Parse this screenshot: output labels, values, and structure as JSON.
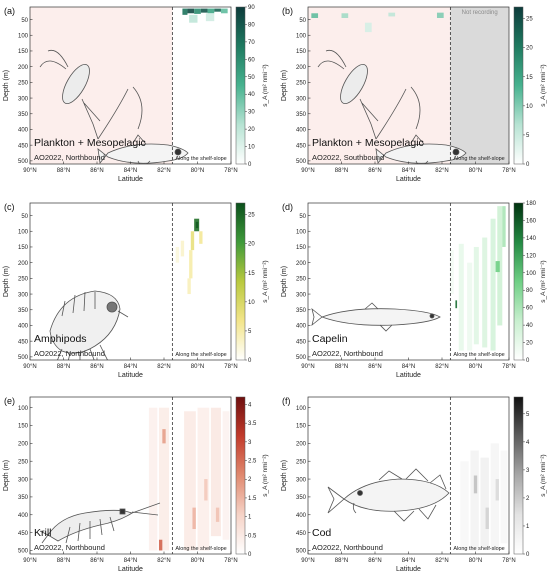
{
  "chart_data": [
    {
      "type": "heatmap",
      "panel_label": "(a)",
      "title": "Plankton + Mesopelagic",
      "subtitle": "AO2022, Northbound",
      "xlabel": "Latitude",
      "ylabel": "Depth (m)",
      "x_ticks": [
        "90°N",
        "88°N",
        "86°N",
        "84°N",
        "82°N",
        "80°N",
        "78°N"
      ],
      "x_tick_values": [
        90,
        88,
        86,
        84,
        82,
        80,
        78
      ],
      "xlim": [
        90,
        78
      ],
      "y_ticks": [
        "50",
        "100",
        "150",
        "200",
        "250",
        "300",
        "350",
        "400",
        "450",
        "500"
      ],
      "ylim": [
        10,
        510
      ],
      "colorbar_label": "s_A (m² nmi⁻²)",
      "colorbar_ticks": [
        "0",
        "10",
        "20",
        "30",
        "40",
        "50",
        "60",
        "70",
        "80",
        "90"
      ],
      "colorbar_range": [
        0,
        90
      ],
      "colormap": [
        "#ffffff",
        "#b7e3d3",
        "#47b28f",
        "#1f7a60",
        "#0d3b3b"
      ],
      "shelf_slope_latitude": 81.5,
      "shelf_slope_label": "Along the shelf-slope",
      "background_region": {
        "lat": [
          90,
          81.5
        ],
        "depth": [
          10,
          510
        ],
        "color": "#fbe8e6",
        "opacity": 0.75
      },
      "cells": [
        {
          "lat": [
            80.9,
            80.6
          ],
          "depth": [
            15,
            35
          ],
          "value": 70
        },
        {
          "lat": [
            80.6,
            80.2
          ],
          "depth": [
            15,
            30
          ],
          "value": 85
        },
        {
          "lat": [
            80.2,
            79.8
          ],
          "depth": [
            15,
            32
          ],
          "value": 60
        },
        {
          "lat": [
            79.8,
            79.4
          ],
          "depth": [
            15,
            28
          ],
          "value": 80
        },
        {
          "lat": [
            79.4,
            79.0
          ],
          "depth": [
            15,
            30
          ],
          "value": 50
        },
        {
          "lat": [
            79.0,
            78.6
          ],
          "depth": [
            15,
            25
          ],
          "value": 75
        },
        {
          "lat": [
            78.6,
            78.2
          ],
          "depth": [
            15,
            30
          ],
          "value": 40
        },
        {
          "lat": [
            80.5,
            80.0
          ],
          "depth": [
            35,
            60
          ],
          "value": 20
        },
        {
          "lat": [
            79.5,
            79.0
          ],
          "depth": [
            30,
            55
          ],
          "value": 15
        }
      ],
      "not_recording": null,
      "animal": "copepod-myctophid"
    },
    {
      "type": "heatmap",
      "panel_label": "(b)",
      "title": "Plankton + Mesopelagic",
      "subtitle": "AO2022, Southbound",
      "xlabel": "Latitude",
      "ylabel": "Depth (m)",
      "x_ticks": [
        "90°N",
        "88°N",
        "86°N",
        "84°N",
        "82°N",
        "80°N",
        "78°N"
      ],
      "x_tick_values": [
        90,
        88,
        86,
        84,
        82,
        80,
        78
      ],
      "xlim": [
        90,
        78
      ],
      "y_ticks": [
        "50",
        "100",
        "150",
        "200",
        "250",
        "300",
        "350",
        "400",
        "450",
        "500"
      ],
      "ylim": [
        10,
        510
      ],
      "colorbar_label": "s_A (m² nmi⁻²)",
      "colorbar_ticks": [
        "0",
        "5",
        "10",
        "15",
        "20",
        "25"
      ],
      "colorbar_range": [
        0,
        27
      ],
      "colormap": [
        "#ffffff",
        "#b7e3d3",
        "#47b28f",
        "#1f7a60",
        "#0d3b3b"
      ],
      "shelf_slope_latitude": 81.5,
      "shelf_slope_label": "Along the shelf-slope",
      "background_region": {
        "lat": [
          90,
          81.5
        ],
        "depth": [
          10,
          510
        ],
        "color": "#fbe8e6",
        "opacity": 0.75
      },
      "cells": [
        {
          "lat": [
            89.8,
            89.4
          ],
          "depth": [
            30,
            45
          ],
          "value": 12
        },
        {
          "lat": [
            88.0,
            87.6
          ],
          "depth": [
            30,
            45
          ],
          "value": 8
        },
        {
          "lat": [
            85.2,
            84.8
          ],
          "depth": [
            28,
            40
          ],
          "value": 6
        },
        {
          "lat": [
            82.3,
            81.9
          ],
          "depth": [
            28,
            45
          ],
          "value": 10
        },
        {
          "lat": [
            86.6,
            86.2
          ],
          "depth": [
            60,
            90
          ],
          "value": 4
        }
      ],
      "not_recording": {
        "lat": [
          81.5,
          78
        ],
        "label": "Not recording"
      },
      "animal": "copepod-myctophid"
    },
    {
      "type": "heatmap",
      "panel_label": "(c)",
      "title": "Amphipods",
      "subtitle": "AO2022, Northbound",
      "xlabel": "Latitude",
      "ylabel": "Depth (m)",
      "x_ticks": [
        "90°N",
        "88°N",
        "86°N",
        "84°N",
        "82°N",
        "80°N",
        "78°N"
      ],
      "x_tick_values": [
        90,
        88,
        86,
        84,
        82,
        80,
        78
      ],
      "xlim": [
        90,
        78
      ],
      "y_ticks": [
        "50",
        "100",
        "150",
        "200",
        "250",
        "300",
        "350",
        "400",
        "450",
        "500"
      ],
      "ylim": [
        10,
        510
      ],
      "colorbar_label": "s_A (m² nmi⁻²)",
      "colorbar_ticks": [
        "0",
        "5",
        "10",
        "15",
        "20",
        "25"
      ],
      "colorbar_range": [
        0,
        27
      ],
      "colormap": [
        "#ffffff",
        "#f3e58a",
        "#b9c93e",
        "#3f9a3a",
        "#0b4f1c"
      ],
      "shelf_slope_latitude": 81.5,
      "shelf_slope_label": "Along the shelf-slope",
      "background_region": null,
      "cells": [
        {
          "lat": [
            80.2,
            79.9
          ],
          "depth": [
            60,
            100
          ],
          "value": 24
        },
        {
          "lat": [
            80.1,
            79.95
          ],
          "depth": [
            70,
            90
          ],
          "value": 26
        },
        {
          "lat": [
            80.4,
            80.2
          ],
          "depth": [
            100,
            160
          ],
          "value": 8
        },
        {
          "lat": [
            80.5,
            80.3
          ],
          "depth": [
            160,
            250
          ],
          "value": 5
        },
        {
          "lat": [
            80.6,
            80.4
          ],
          "depth": [
            250,
            300
          ],
          "value": 4
        },
        {
          "lat": [
            81.0,
            80.8
          ],
          "depth": [
            130,
            180
          ],
          "value": 3
        },
        {
          "lat": [
            79.9,
            79.7
          ],
          "depth": [
            100,
            140
          ],
          "value": 6
        },
        {
          "lat": [
            81.3,
            81.1
          ],
          "depth": [
            150,
            200
          ],
          "value": 2
        }
      ],
      "not_recording": null,
      "animal": "amphipod"
    },
    {
      "type": "heatmap",
      "panel_label": "(d)",
      "title": "Capelin",
      "subtitle": "AO2022, Northbound",
      "xlabel": "Latitude",
      "ylabel": "Depth (m)",
      "x_ticks": [
        "90°N",
        "88°N",
        "86°N",
        "84°N",
        "82°N",
        "80°N",
        "78°N"
      ],
      "x_tick_values": [
        90,
        88,
        86,
        84,
        82,
        80,
        78
      ],
      "xlim": [
        90,
        78
      ],
      "y_ticks": [
        "50",
        "100",
        "150",
        "200",
        "250",
        "300",
        "350",
        "400",
        "450",
        "500"
      ],
      "ylim": [
        10,
        510
      ],
      "colorbar_label": "s_A (m² nmi⁻²)",
      "colorbar_ticks": [
        "0",
        "20",
        "40",
        "60",
        "80",
        "100",
        "120",
        "140",
        "160",
        "180"
      ],
      "colorbar_range": [
        0,
        180
      ],
      "colormap": [
        "#ffffff",
        "#c8efcf",
        "#6fcf85",
        "#248a43",
        "#00320f"
      ],
      "shelf_slope_latitude": 81.5,
      "shelf_slope_label": "Along the shelf-slope",
      "background_region": null,
      "cells": [
        {
          "lat": [
            81.0,
            80.7
          ],
          "depth": [
            140,
            480
          ],
          "value": 20
        },
        {
          "lat": [
            80.5,
            80.2
          ],
          "depth": [
            200,
            480
          ],
          "value": 15
        },
        {
          "lat": [
            80.1,
            79.8
          ],
          "depth": [
            150,
            460
          ],
          "value": 25
        },
        {
          "lat": [
            79.6,
            79.3
          ],
          "depth": [
            120,
            470
          ],
          "value": 30
        },
        {
          "lat": [
            79.1,
            78.8
          ],
          "depth": [
            60,
            480
          ],
          "value": 35
        },
        {
          "lat": [
            78.7,
            78.4
          ],
          "depth": [
            20,
            400
          ],
          "value": 40
        },
        {
          "lat": [
            78.4,
            78.2
          ],
          "depth": [
            20,
            150
          ],
          "value": 60
        },
        {
          "lat": [
            78.8,
            78.55
          ],
          "depth": [
            195,
            230
          ],
          "value": 90
        },
        {
          "lat": [
            81.2,
            81.1
          ],
          "depth": [
            320,
            345
          ],
          "value": 150
        },
        {
          "lat": [
            81.5,
            81.3
          ],
          "depth": [
            160,
            300
          ],
          "value": 10
        }
      ],
      "not_recording": null,
      "animal": "capelin"
    },
    {
      "type": "heatmap",
      "panel_label": "(e)",
      "title": "Krill",
      "subtitle": "AO2022, Northbound",
      "xlabel": "Latitude",
      "ylabel": "Depth (m)",
      "x_ticks": [
        "90°N",
        "88°N",
        "86°N",
        "84°N",
        "82°N",
        "80°N",
        "78°N"
      ],
      "x_tick_values": [
        90,
        88,
        86,
        84,
        82,
        80,
        78
      ],
      "xlim": [
        90,
        78
      ],
      "y_ticks": [
        "100",
        "150",
        "200",
        "250",
        "300",
        "350",
        "400",
        "450",
        "500"
      ],
      "ylim": [
        70,
        510
      ],
      "colorbar_label": "s_A (m² nmi⁻²)",
      "colorbar_ticks": [
        "0",
        "0.5",
        "1",
        "1.5",
        "2",
        "2.5",
        "3",
        "3.5",
        "4"
      ],
      "colorbar_range": [
        0,
        4.2
      ],
      "colormap": [
        "#ffffff",
        "#f6d3c7",
        "#e08a70",
        "#c23b2b",
        "#6e0f0f"
      ],
      "shelf_slope_latitude": 81.5,
      "shelf_slope_label": "Along the shelf-slope",
      "background_region": null,
      "cells": [
        {
          "lat": [
            82.9,
            82.4
          ],
          "depth": [
            100,
            500
          ],
          "value": 0.35
        },
        {
          "lat": [
            82.3,
            81.7
          ],
          "depth": [
            100,
            500
          ],
          "value": 0.45
        },
        {
          "lat": [
            80.8,
            80.1
          ],
          "depth": [
            110,
            500
          ],
          "value": 0.5
        },
        {
          "lat": [
            80.0,
            79.3
          ],
          "depth": [
            100,
            500
          ],
          "value": 0.4
        },
        {
          "lat": [
            79.2,
            78.6
          ],
          "depth": [
            100,
            460
          ],
          "value": 0.55
        },
        {
          "lat": [
            78.5,
            78.1
          ],
          "depth": [
            110,
            470
          ],
          "value": 0.3
        },
        {
          "lat": [
            82.1,
            81.9
          ],
          "depth": [
            160,
            200
          ],
          "value": 1.8
        },
        {
          "lat": [
            82.3,
            82.1
          ],
          "depth": [
            470,
            500
          ],
          "value": 2.6
        },
        {
          "lat": [
            80.3,
            80.1
          ],
          "depth": [
            380,
            440
          ],
          "value": 1.5
        },
        {
          "lat": [
            79.6,
            79.4
          ],
          "depth": [
            300,
            360
          ],
          "value": 1.2
        },
        {
          "lat": [
            78.9,
            78.7
          ],
          "depth": [
            380,
            420
          ],
          "value": 1.3
        }
      ],
      "not_recording": null,
      "animal": "krill"
    },
    {
      "type": "heatmap",
      "panel_label": "(f)",
      "title": "Cod",
      "subtitle": "AO2022, Northbound",
      "xlabel": "Latitude",
      "ylabel": "Depth (m)",
      "x_ticks": [
        "90°N",
        "88°N",
        "86°N",
        "84°N",
        "82°N",
        "80°N",
        "78°N"
      ],
      "x_tick_values": [
        90,
        88,
        86,
        84,
        82,
        80,
        78
      ],
      "xlim": [
        90,
        78
      ],
      "y_ticks": [
        "100",
        "150",
        "200",
        "250",
        "300",
        "350",
        "400",
        "450",
        "500"
      ],
      "ylim": [
        70,
        510
      ],
      "colorbar_label": "s_A (m² nmi⁻²)",
      "colorbar_ticks": [
        "0",
        "1",
        "2",
        "3",
        "4",
        "5"
      ],
      "colorbar_range": [
        0,
        5.6
      ],
      "colormap": [
        "#ffffff",
        "#e3e3e3",
        "#a7a7a7",
        "#5d5d5d",
        "#111111"
      ],
      "shelf_slope_latitude": 81.5,
      "shelf_slope_label": "Along the shelf-slope",
      "background_region": null,
      "cells": [
        {
          "lat": [
            80.9,
            80.4
          ],
          "depth": [
            250,
            500
          ],
          "value": 0.4
        },
        {
          "lat": [
            80.3,
            79.8
          ],
          "depth": [
            220,
            500
          ],
          "value": 0.6
        },
        {
          "lat": [
            79.7,
            79.2
          ],
          "depth": [
            240,
            490
          ],
          "value": 0.7
        },
        {
          "lat": [
            79.1,
            78.6
          ],
          "depth": [
            200,
            500
          ],
          "value": 0.5
        },
        {
          "lat": [
            78.5,
            78.1
          ],
          "depth": [
            220,
            480
          ],
          "value": 0.4
        },
        {
          "lat": [
            80.1,
            79.9
          ],
          "depth": [
            290,
            340
          ],
          "value": 2.2
        },
        {
          "lat": [
            79.4,
            79.2
          ],
          "depth": [
            380,
            440
          ],
          "value": 1.8
        },
        {
          "lat": [
            78.8,
            78.6
          ],
          "depth": [
            300,
            360
          ],
          "value": 1.6
        }
      ],
      "not_recording": null,
      "animal": "cod"
    }
  ]
}
